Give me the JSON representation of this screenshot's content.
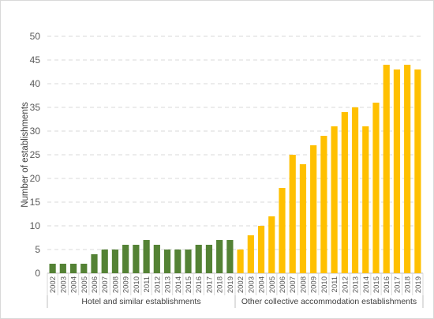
{
  "chart_data": {
    "type": "bar",
    "ylabel": "Number of establishments",
    "ylim": [
      0,
      50
    ],
    "yticks": [
      0,
      5,
      10,
      15,
      20,
      25,
      30,
      35,
      40,
      45,
      50
    ],
    "grid": "horizontal dashed",
    "groups": [
      {
        "name": "Hotel and similar establishments",
        "color": "#548235",
        "categories": [
          "2002",
          "2003",
          "2004",
          "2005",
          "2006",
          "2007",
          "2008",
          "2009",
          "2010",
          "2011",
          "2012",
          "2013",
          "2014",
          "2015",
          "2016",
          "2017",
          "2018",
          "2019"
        ],
        "values": [
          2,
          2,
          2,
          2,
          4,
          5,
          5,
          6,
          6,
          7,
          6,
          5,
          5,
          5,
          6,
          6,
          7,
          7
        ]
      },
      {
        "name": "Other collective accommodation establishments",
        "color": "#FFC000",
        "categories": [
          "2002",
          "2003",
          "2004",
          "2005",
          "2006",
          "2007",
          "2008",
          "2009",
          "2010",
          "2011",
          "2012",
          "2013",
          "2014",
          "2015",
          "2016",
          "2017",
          "2018",
          "2019"
        ],
        "values": [
          5,
          8,
          10,
          12,
          18,
          25,
          23,
          27,
          29,
          31,
          34,
          35,
          31,
          36,
          44,
          43,
          44,
          43
        ]
      }
    ]
  }
}
